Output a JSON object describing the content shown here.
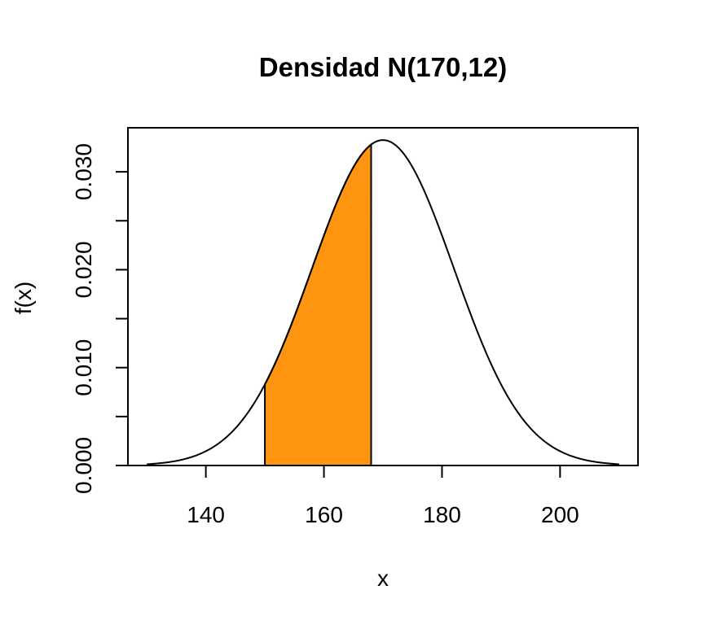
{
  "chart_data": {
    "type": "area",
    "title": "Densidad N(170,12)",
    "xlabel": "x",
    "ylabel": "f(x)",
    "distribution": {
      "family": "normal",
      "mean": 170,
      "sd": 12
    },
    "curve_x_range": [
      130,
      210
    ],
    "shaded_interval": [
      150,
      168
    ],
    "shade_color": "#ff9410",
    "xlim": [
      126.8,
      213.2
    ],
    "ylim": [
      0,
      0.0345
    ],
    "x_ticks": [
      140,
      160,
      180,
      200
    ],
    "x_tick_labels": [
      "140",
      "160",
      "180",
      "200"
    ],
    "y_ticks": [
      0,
      0.005,
      0.01,
      0.015,
      0.02,
      0.025,
      0.03
    ],
    "y_tick_labels": [
      "0.000",
      "",
      "0.010",
      "",
      "0.020",
      "",
      "0.030"
    ],
    "grid": false,
    "legend": "none"
  }
}
